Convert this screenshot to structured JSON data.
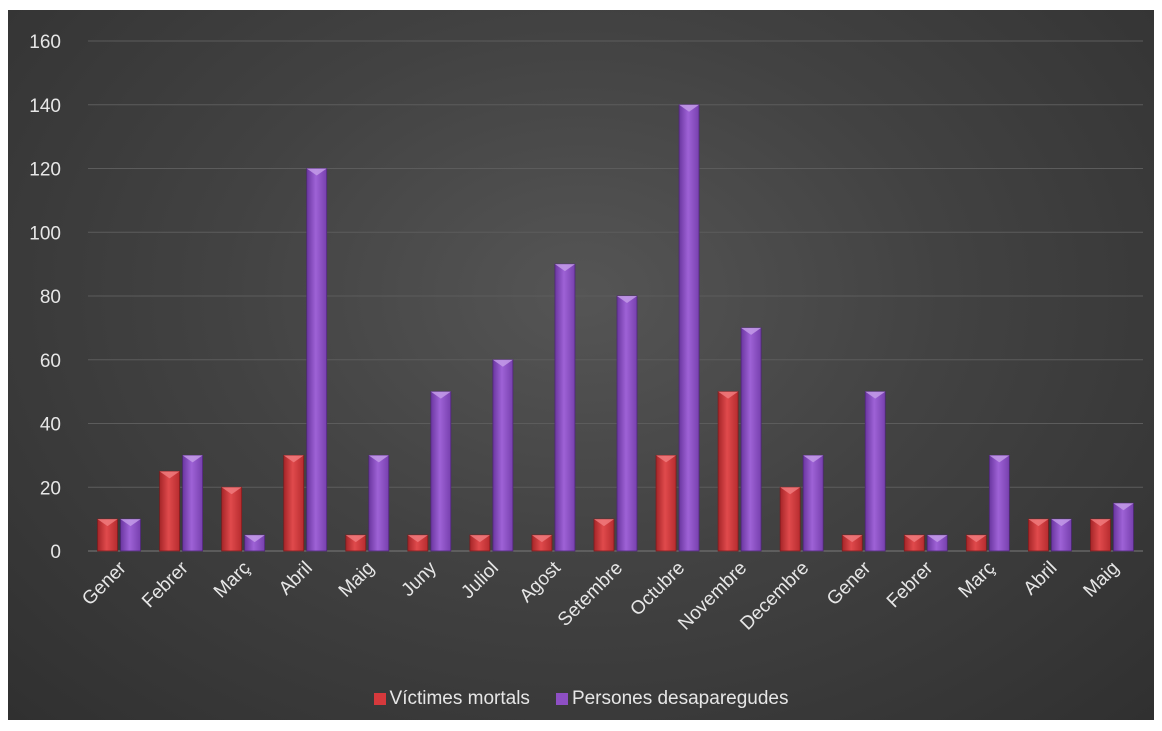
{
  "chart_data": {
    "type": "bar",
    "categories": [
      "Gener",
      "Febrer",
      "Març",
      "Abril",
      "Maig",
      "Juny",
      "Juliol",
      "Agost",
      "Setembre",
      "Octubre",
      "Novembre",
      "Decembre",
      "Gener",
      "Febrer",
      "Març",
      "Abril",
      "Maig"
    ],
    "series": [
      {
        "name": "Víctimes mortals",
        "color": "#d6393c",
        "values": [
          10,
          25,
          20,
          30,
          5,
          5,
          5,
          5,
          10,
          30,
          50,
          20,
          5,
          5,
          5,
          10,
          10
        ]
      },
      {
        "name": "Persones desaparegudes",
        "color": "#8e4fc4",
        "values": [
          10,
          30,
          5,
          120,
          30,
          50,
          60,
          90,
          80,
          140,
          70,
          30,
          50,
          5,
          30,
          10,
          15
        ]
      }
    ],
    "ylim": [
      0,
      160
    ],
    "yticks": [
      0,
      20,
      40,
      60,
      80,
      100,
      120,
      140,
      160
    ],
    "grid": true,
    "legend_position": "bottom",
    "title": "",
    "xlabel": "",
    "ylabel": ""
  }
}
